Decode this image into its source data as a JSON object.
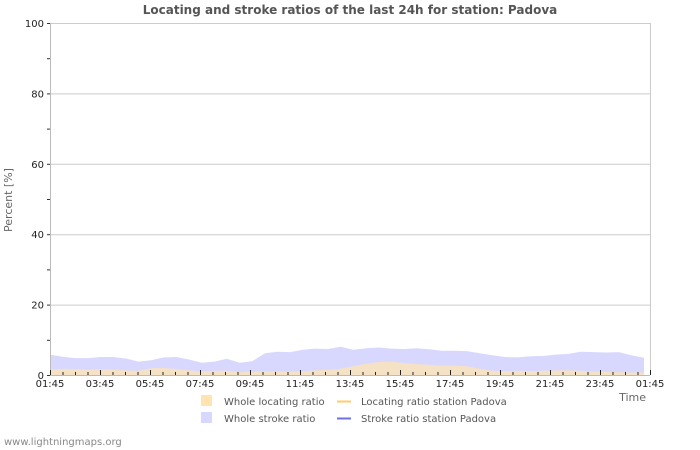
{
  "chart_data": {
    "type": "area",
    "title": "Locating and stroke ratios of the last 24h for station: Padova",
    "xlabel": "Time",
    "ylabel": "Percent   [%]",
    "ylim": [
      0,
      100
    ],
    "yticks": [
      0,
      20,
      40,
      60,
      80,
      100
    ],
    "xticks": [
      "01:45",
      "03:45",
      "05:45",
      "07:45",
      "09:45",
      "11:45",
      "13:45",
      "15:45",
      "17:45",
      "19:45",
      "21:45",
      "23:45",
      "01:45"
    ],
    "grid": true,
    "legend_position": "bottom",
    "x": [
      "01:45",
      "02:15",
      "02:45",
      "03:15",
      "03:45",
      "04:15",
      "04:45",
      "05:15",
      "05:45",
      "06:15",
      "06:45",
      "07:15",
      "07:45",
      "08:15",
      "08:45",
      "09:15",
      "09:45",
      "10:15",
      "10:45",
      "11:15",
      "11:45",
      "12:15",
      "12:45",
      "13:15",
      "13:45",
      "14:15",
      "14:45",
      "15:15",
      "15:45",
      "16:15",
      "16:45",
      "17:15",
      "17:45",
      "18:15",
      "18:45",
      "19:15",
      "19:45",
      "20:15",
      "20:45",
      "21:15",
      "21:45",
      "22:15",
      "22:45",
      "23:15",
      "23:45",
      "00:15",
      "00:45",
      "01:15"
    ],
    "series": [
      {
        "name": "Whole stroke ratio",
        "kind": "area",
        "color": "#d8d8ff",
        "values": [
          5.8,
          5.2,
          4.8,
          4.8,
          5.1,
          5.1,
          4.7,
          3.8,
          4.2,
          5.0,
          5.1,
          4.4,
          3.5,
          3.8,
          4.6,
          3.5,
          3.9,
          6.2,
          6.6,
          6.5,
          7.2,
          7.5,
          7.4,
          8.0,
          7.2,
          7.6,
          7.8,
          7.5,
          7.4,
          7.6,
          7.3,
          6.9,
          6.9,
          6.8,
          6.2,
          5.6,
          5.1,
          5.0,
          5.3,
          5.4,
          5.8,
          6.0,
          6.6,
          6.5,
          6.4,
          6.5,
          5.6,
          4.9
        ]
      },
      {
        "name": "Whole locating ratio",
        "kind": "area",
        "color": "#ffe4b0",
        "values": [
          1.6,
          1.8,
          1.7,
          1.6,
          1.7,
          1.5,
          1.3,
          1.2,
          1.9,
          2.0,
          1.7,
          1.3,
          1.0,
          1.2,
          1.2,
          0.8,
          1.0,
          1.1,
          1.0,
          1.0,
          1.1,
          1.3,
          1.5,
          1.8,
          2.5,
          3.2,
          3.7,
          3.8,
          3.4,
          3.1,
          2.9,
          2.7,
          2.7,
          2.5,
          1.8,
          1.2,
          1.1,
          1.2,
          1.1,
          1.2,
          1.3,
          1.3,
          1.2,
          1.0,
          0.9,
          0.8,
          0.7,
          0.7
        ]
      },
      {
        "name": "Locating ratio station Padova",
        "kind": "line",
        "color": "#ffcc66",
        "values": []
      },
      {
        "name": "Stroke ratio station Padova",
        "kind": "line",
        "color": "#6666dd",
        "values": []
      }
    ]
  },
  "legend": {
    "items": [
      {
        "label": "Whole locating ratio",
        "swatch": "box",
        "color": "#ffe4b0"
      },
      {
        "label": "Locating ratio station Padova",
        "swatch": "line",
        "color": "#ffcc66"
      },
      {
        "label": "Whole stroke ratio",
        "swatch": "box",
        "color": "#d8d8ff"
      },
      {
        "label": "Stroke ratio station Padova",
        "swatch": "line",
        "color": "#7070e0"
      }
    ]
  },
  "footer": {
    "source": "www.lightningmaps.org"
  }
}
